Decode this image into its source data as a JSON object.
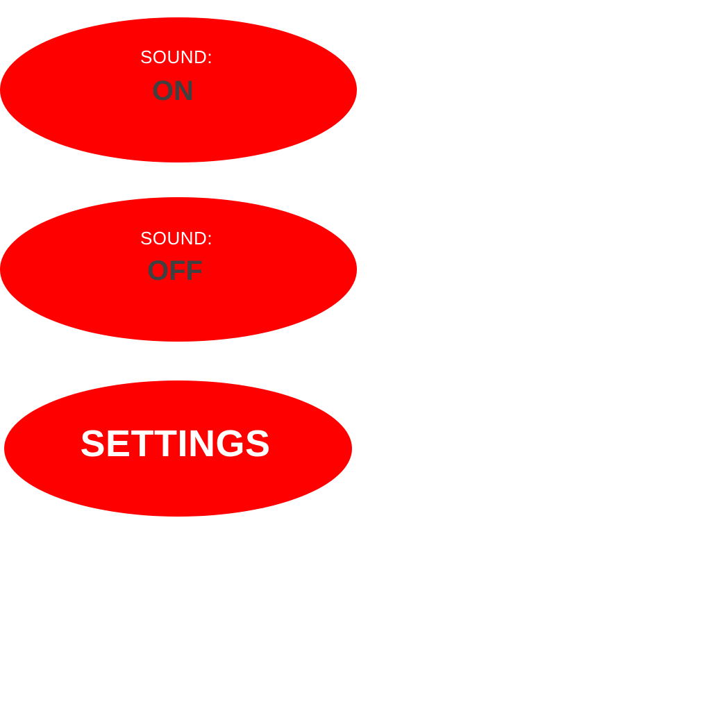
{
  "colors": {
    "button_fill": "#ff0000",
    "label_text": "#ffffff",
    "state_text": "#404040",
    "background": "#ffffff"
  },
  "buttons": {
    "sound_on": {
      "label": "SOUND:",
      "state": "ON"
    },
    "sound_off": {
      "label": "SOUND:",
      "state": "OFF"
    },
    "settings": {
      "label": "SETTINGS"
    }
  }
}
